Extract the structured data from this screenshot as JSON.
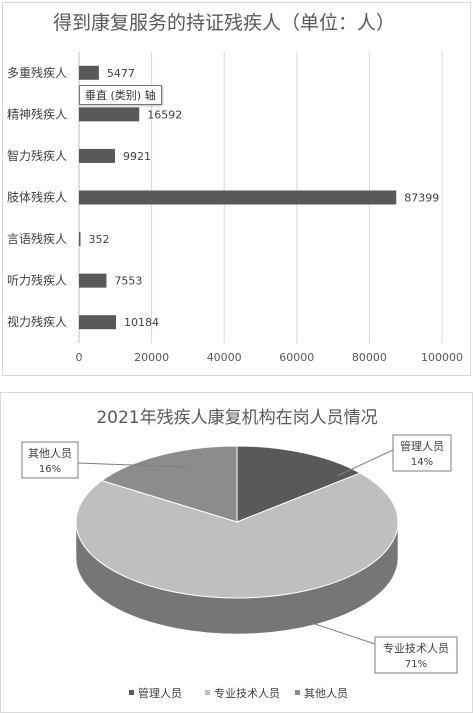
{
  "chart_data": [
    {
      "type": "bar",
      "orientation": "horizontal",
      "title": "得到康复服务的持证残疾人（单位：人）",
      "categories": [
        "多重残疾人",
        "精神残疾人",
        "智力残疾人",
        "肢体残疾人",
        "言语残疾人",
        "听力残疾人",
        "视力残疾人"
      ],
      "values": [
        5477,
        16592,
        9921,
        87399,
        352,
        7553,
        10184
      ],
      "data_labels": [
        "5477",
        "16592",
        "9921",
        "87399",
        "352",
        "7553",
        "10184"
      ],
      "xlim": [
        0,
        100000
      ],
      "ticks": [
        0,
        20000,
        40000,
        60000,
        80000,
        100000
      ],
      "tick_labels": [
        "0",
        "20000",
        "40000",
        "60000",
        "80000",
        "100000"
      ],
      "grid": true,
      "bar_color": "#595959",
      "tooltip": "垂直 (类别) 轴"
    },
    {
      "type": "pie",
      "style": "3d",
      "title": "2021年残疾人康复机构在岗人员情况",
      "slices": [
        {
          "name": "管理人员",
          "value": 14,
          "label": "14%",
          "color": "#595959"
        },
        {
          "name": "专业技术人员",
          "value": 71,
          "label": "71%",
          "color": "#bfbfbf"
        },
        {
          "name": "其他人员",
          "value": 16,
          "label": "16%",
          "color": "#8c8c8c"
        }
      ],
      "legend": [
        "管理人员",
        "专业技术人员",
        "其他人员"
      ],
      "legend_position": "bottom"
    }
  ]
}
